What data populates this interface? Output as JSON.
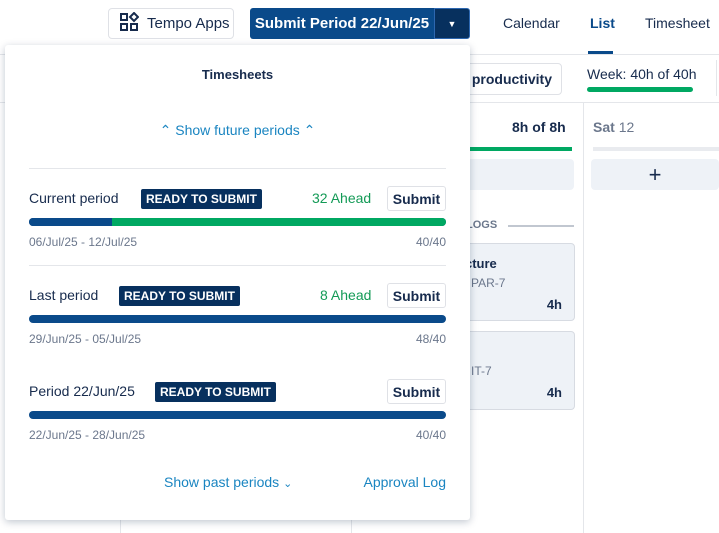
{
  "header": {
    "tempo_apps": "Tempo Apps",
    "submit_period": "Submit Period 22/Jun/25",
    "nav": [
      "Calendar",
      "List",
      "Timesheet"
    ],
    "active_nav": "List"
  },
  "toolbar": {
    "productivity": "r productivity",
    "week": "Week: 40h of 40h",
    "week_progress": 1.0
  },
  "background": {
    "day_total": "8h of 8h",
    "sat_label": "Sat",
    "sat_num": "12",
    "logs": "LOGS",
    "card1_title": "cture",
    "card1_key": "PAR-7",
    "card1_hours": "4h",
    "card2_key": "IT-7",
    "card2_hours": "4h"
  },
  "popup": {
    "title": "Timesheets",
    "show_future": "Show future periods",
    "show_past": "Show past periods",
    "approval_log": "Approval Log",
    "periods": [
      {
        "label": "Current period",
        "status": "READY TO SUBMIT",
        "ahead": "32 Ahead",
        "submit": "Submit",
        "dates": "06/Jul/25 - 12/Jul/25",
        "hours": "40/40",
        "progress_submitted": 0.2,
        "progress_ahead": 0.8
      },
      {
        "label": "Last period",
        "status": "READY TO SUBMIT",
        "ahead": "8 Ahead",
        "submit": "Submit",
        "dates": "29/Jun/25 - 05/Jul/25",
        "hours": "48/40",
        "progress_submitted": 1.0
      },
      {
        "label": "Period 22/Jun/25",
        "status": "READY TO SUBMIT",
        "submit": "Submit",
        "dates": "22/Jun/25 - 28/Jun/25",
        "hours": "40/40",
        "progress_submitted": 1.0
      }
    ]
  },
  "colors": {
    "primary": "#0a4a8a",
    "dark": "#07305e",
    "green": "#00a862",
    "link": "#1a85c1"
  }
}
